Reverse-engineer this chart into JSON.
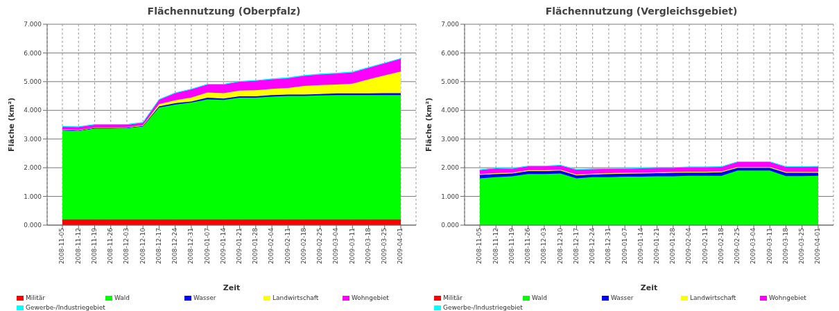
{
  "chart_data": [
    {
      "type": "area",
      "stacked": true,
      "title": "Flächennutzung (Oberpfalz)",
      "xlabel": "Zeit",
      "ylabel": "Fläche (km²)",
      "categories": [
        "2008-11-05",
        "2008-11-12",
        "2008-11-19",
        "2008-11-26",
        "2008-12-03",
        "2008-12-10",
        "2008-12-17",
        "2008-12-24",
        "2008-12-31",
        "2009-01-07",
        "2009-01-14",
        "2009-01-21",
        "2009-01-28",
        "2009-02-04",
        "2009-02-11",
        "2009-02-18",
        "2009-02-25",
        "2009-03-04",
        "2009-03-11",
        "2009-03-18",
        "2009-03-25",
        "2009-04-01"
      ],
      "ylim": [
        0,
        7
      ],
      "yticks": [
        {
          "value": 0,
          "label": "0.000"
        },
        {
          "value": 1,
          "label": "1.000"
        },
        {
          "value": 2,
          "label": "2.000"
        },
        {
          "value": 3,
          "label": "3.000"
        },
        {
          "value": 4,
          "label": "4.000"
        },
        {
          "value": 5,
          "label": "5.000"
        },
        {
          "value": 6,
          "label": "6.000"
        },
        {
          "value": 7,
          "label": "7.000"
        }
      ],
      "grid": true,
      "legend": "bottom",
      "series": [
        {
          "name": "Militär",
          "color": "#ff0000",
          "values": [
            0.2,
            0.2,
            0.2,
            0.2,
            0.2,
            0.2,
            0.2,
            0.2,
            0.2,
            0.2,
            0.2,
            0.2,
            0.2,
            0.2,
            0.2,
            0.2,
            0.2,
            0.2,
            0.2,
            0.2,
            0.2,
            0.2
          ]
        },
        {
          "name": "Wald",
          "color": "#00ff00",
          "values": [
            3.1,
            3.08,
            3.17,
            3.17,
            3.18,
            3.24,
            3.9,
            4.0,
            4.07,
            4.18,
            4.16,
            4.24,
            4.24,
            4.28,
            4.3,
            4.3,
            4.32,
            4.33,
            4.33,
            4.33,
            4.33,
            4.33
          ]
        },
        {
          "name": "Wasser",
          "color": "#0000ff",
          "values": [
            0.02,
            0.02,
            0.02,
            0.02,
            0.02,
            0.02,
            0.04,
            0.05,
            0.04,
            0.06,
            0.05,
            0.05,
            0.05,
            0.05,
            0.05,
            0.05,
            0.05,
            0.06,
            0.06,
            0.06,
            0.07,
            0.07
          ]
        },
        {
          "name": "Landwirtschaft",
          "color": "#ffff00",
          "values": [
            0.01,
            0.01,
            0.01,
            0.01,
            0.01,
            0.02,
            0.08,
            0.1,
            0.14,
            0.18,
            0.19,
            0.2,
            0.21,
            0.22,
            0.23,
            0.3,
            0.31,
            0.31,
            0.34,
            0.49,
            0.62,
            0.75
          ]
        },
        {
          "name": "Wohngebiet",
          "color": "#ff00ff",
          "values": [
            0.1,
            0.11,
            0.1,
            0.1,
            0.09,
            0.09,
            0.15,
            0.25,
            0.28,
            0.28,
            0.3,
            0.31,
            0.33,
            0.33,
            0.34,
            0.35,
            0.37,
            0.38,
            0.39,
            0.4,
            0.42,
            0.45
          ]
        },
        {
          "name": "Gewerbe-/Industriegebiet",
          "color": "#00ffff",
          "values": [
            0.01,
            0.01,
            0.01,
            0.01,
            0.01,
            0.01,
            0.01,
            0.01,
            0.01,
            0.01,
            0.01,
            0.01,
            0.01,
            0.02,
            0.02,
            0.02,
            0.02,
            0.02,
            0.02,
            0.02,
            0.01,
            0.01
          ]
        }
      ]
    },
    {
      "type": "area",
      "stacked": true,
      "title": "Flächennutzung (Vergleichsgebiet)",
      "xlabel": "Zeit",
      "ylabel": "Fläche (km²)",
      "categories": [
        "2008-11-05",
        "2008-11-12",
        "2008-11-19",
        "2008-11-26",
        "2008-12-03",
        "2008-12-10",
        "2008-12-17",
        "2008-12-24",
        "2008-12-31",
        "2009-01-07",
        "2009-01-14",
        "2009-01-21",
        "2009-01-28",
        "2009-02-04",
        "2009-02-11",
        "2009-02-18",
        "2009-02-25",
        "2009-03-04",
        "2009-03-11",
        "2009-03-18",
        "2009-03-25",
        "2009-04-01"
      ],
      "ylim": [
        0,
        7
      ],
      "yticks": [
        {
          "value": 0,
          "label": "0.000"
        },
        {
          "value": 1,
          "label": "1.000"
        },
        {
          "value": 2,
          "label": "2.000"
        },
        {
          "value": 3,
          "label": "3.000"
        },
        {
          "value": 4,
          "label": "4.000"
        },
        {
          "value": 5,
          "label": "5.000"
        },
        {
          "value": 6,
          "label": "6.000"
        },
        {
          "value": 7,
          "label": "7.000"
        }
      ],
      "grid": true,
      "legend": "bottom",
      "series": [
        {
          "name": "Militär",
          "color": "#ff0000",
          "values": [
            null,
            null,
            null,
            null,
            null,
            null,
            null,
            null,
            null,
            null,
            null,
            null,
            null,
            null,
            null,
            null,
            null,
            null,
            null,
            null,
            null,
            null
          ]
        },
        {
          "name": "Wald",
          "color": "#00ff00",
          "values": [
            1.63,
            1.67,
            1.7,
            1.78,
            1.78,
            1.8,
            1.63,
            1.67,
            1.67,
            1.69,
            1.69,
            1.7,
            1.7,
            1.72,
            1.72,
            1.72,
            1.9,
            1.9,
            1.9,
            1.71,
            1.71,
            1.72
          ]
        },
        {
          "name": "Wasser",
          "color": "#0000ff",
          "values": [
            0.12,
            0.11,
            0.1,
            0.1,
            0.1,
            0.1,
            0.1,
            0.09,
            0.11,
            0.1,
            0.11,
            0.11,
            0.12,
            0.11,
            0.11,
            0.12,
            0.1,
            0.1,
            0.1,
            0.11,
            0.11,
            0.1
          ]
        },
        {
          "name": "Landwirtschaft",
          "color": "#ffff00",
          "values": [
            0.03,
            0.03,
            0.03,
            0.03,
            0.03,
            0.03,
            0.03,
            0.03,
            0.03,
            0.03,
            0.03,
            0.03,
            0.03,
            0.03,
            0.03,
            0.03,
            0.03,
            0.03,
            0.03,
            0.03,
            0.03,
            0.03
          ]
        },
        {
          "name": "Wohngebiet",
          "color": "#ff00ff",
          "values": [
            0.14,
            0.17,
            0.14,
            0.14,
            0.14,
            0.15,
            0.17,
            0.16,
            0.15,
            0.15,
            0.15,
            0.16,
            0.15,
            0.16,
            0.16,
            0.16,
            0.17,
            0.17,
            0.17,
            0.18,
            0.18,
            0.19
          ]
        },
        {
          "name": "Gewerbe-/Industriegebiet",
          "color": "#00ffff",
          "values": [
            0.01,
            0.01,
            0.01,
            0.01,
            0.01,
            0.01,
            0.01,
            0.01,
            0.01,
            0.01,
            0.01,
            0.01,
            0.01,
            0.01,
            0.01,
            0.01,
            0.01,
            0.01,
            0.01,
            0.01,
            0.01,
            0.01
          ]
        }
      ]
    }
  ]
}
